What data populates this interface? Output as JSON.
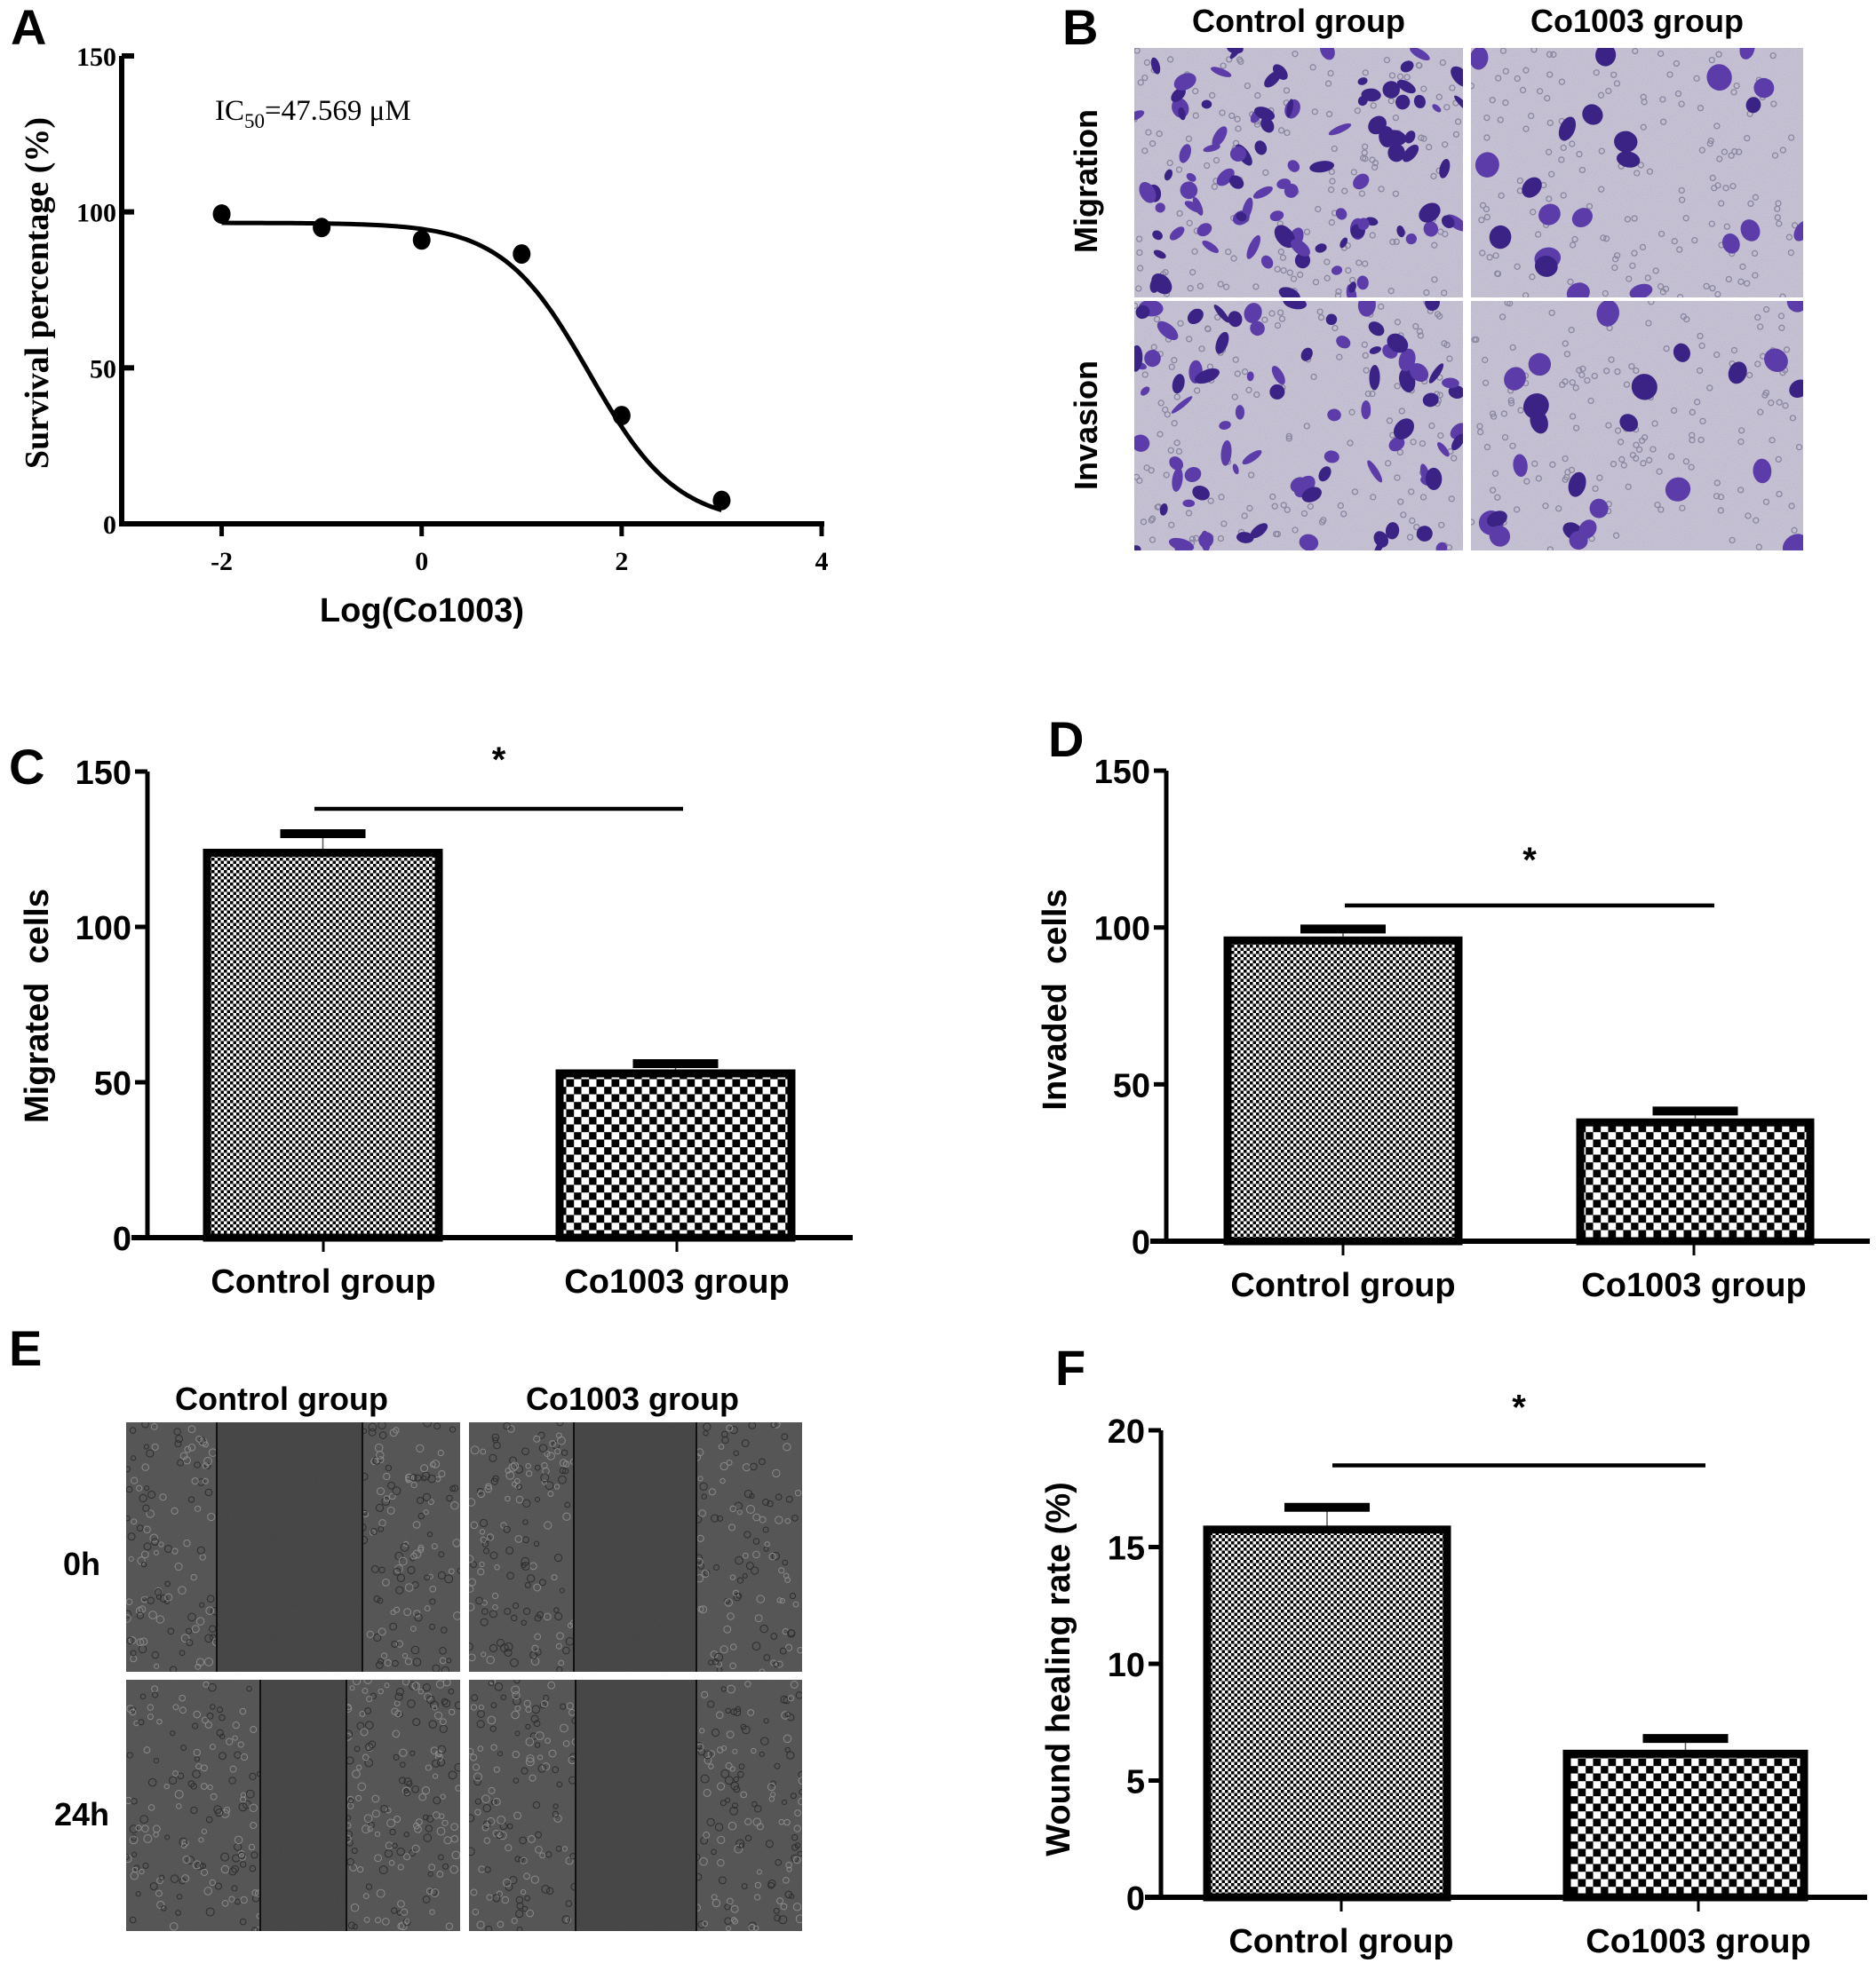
{
  "panel_labels": [
    "A",
    "B",
    "C",
    "D",
    "E",
    "F"
  ],
  "chart_data": [
    {
      "panel": "A",
      "type": "scatter",
      "title": "",
      "annotation": {
        "prefix": "IC",
        "subscript": "50",
        "suffix": "=47.569 μM"
      },
      "xlabel": "Log(Co1003)",
      "ylabel": "Survival percentage (%)",
      "xlim": [
        -3,
        4
      ],
      "ylim": [
        0,
        150
      ],
      "xticks": [
        -2,
        0,
        2,
        4
      ],
      "xtick_labels": [
        "-2",
        "0",
        "2",
        "4"
      ],
      "yticks": [
        0,
        50,
        100,
        150
      ],
      "ytick_labels": [
        "0",
        "50",
        "100",
        "150"
      ],
      "x": [
        -2,
        -1,
        0,
        1,
        2,
        3
      ],
      "y": [
        99.3,
        95.0,
        91.0,
        86.5,
        34.7,
        7.5
      ],
      "fit": {
        "model": "sigmoid dose-response",
        "top": 96.5,
        "bottom": 0,
        "logIC50": 1.677,
        "hill": -1.0
      },
      "grid": false,
      "legend": "none"
    },
    {
      "panel": "C",
      "type": "bar",
      "categories": [
        "Control group",
        "Co1003 group"
      ],
      "values": [
        125,
        54
      ],
      "error_upper": [
        130,
        56
      ],
      "ylabel": "Migrated  cells",
      "xlabel": "",
      "ylim": [
        0,
        150
      ],
      "yticks": [
        0,
        50,
        100,
        150
      ],
      "ytick_labels": [
        "0",
        "50",
        "100",
        "150"
      ],
      "significance": {
        "label": "*",
        "level": 138
      },
      "grid": false
    },
    {
      "panel": "D",
      "type": "bar",
      "categories": [
        "Control group",
        "Co1003 group"
      ],
      "values": [
        97,
        39
      ],
      "error_upper": [
        99.5,
        41.5
      ],
      "ylabel": "Invaded  cells",
      "xlabel": "",
      "ylim": [
        0,
        150
      ],
      "yticks": [
        0,
        50,
        100,
        150
      ],
      "ytick_labels": [
        "0",
        "50",
        "100",
        "150"
      ],
      "significance": {
        "label": "*",
        "level": 107
      },
      "grid": false
    },
    {
      "panel": "F",
      "type": "bar",
      "categories": [
        "Control group",
        "Co1003 group"
      ],
      "values": [
        15.9,
        6.3
      ],
      "error_upper": [
        16.7,
        6.8
      ],
      "ylabel": "Wound healing rate (%)",
      "xlabel": "",
      "ylim": [
        0,
        20
      ],
      "yticks": [
        0,
        5,
        10,
        15,
        20
      ],
      "ytick_labels": [
        "0",
        "5",
        "10",
        "15",
        "20"
      ],
      "significance": {
        "label": "*",
        "level": 18.5
      },
      "grid": false
    }
  ],
  "panel_b": {
    "column_labels": [
      "Control group",
      "Co1003 group"
    ],
    "row_labels": [
      "Migration",
      "Invasion"
    ],
    "colors": {
      "background": "#cbc7da",
      "cell": "#5b3ca8",
      "cell_dark": "#3b2385",
      "pore": "#8a86a0"
    }
  },
  "panel_e": {
    "column_labels": [
      "Control group",
      "Co1003 group"
    ],
    "row_labels": [
      "0h",
      "24h"
    ],
    "colors": {
      "background": "#5a5a5a",
      "gap": "#4a4a4a",
      "cell": "#6e6e6e",
      "line": "#111111"
    }
  },
  "colors": {
    "ink": "#000000",
    "paper": "#ffffff"
  }
}
